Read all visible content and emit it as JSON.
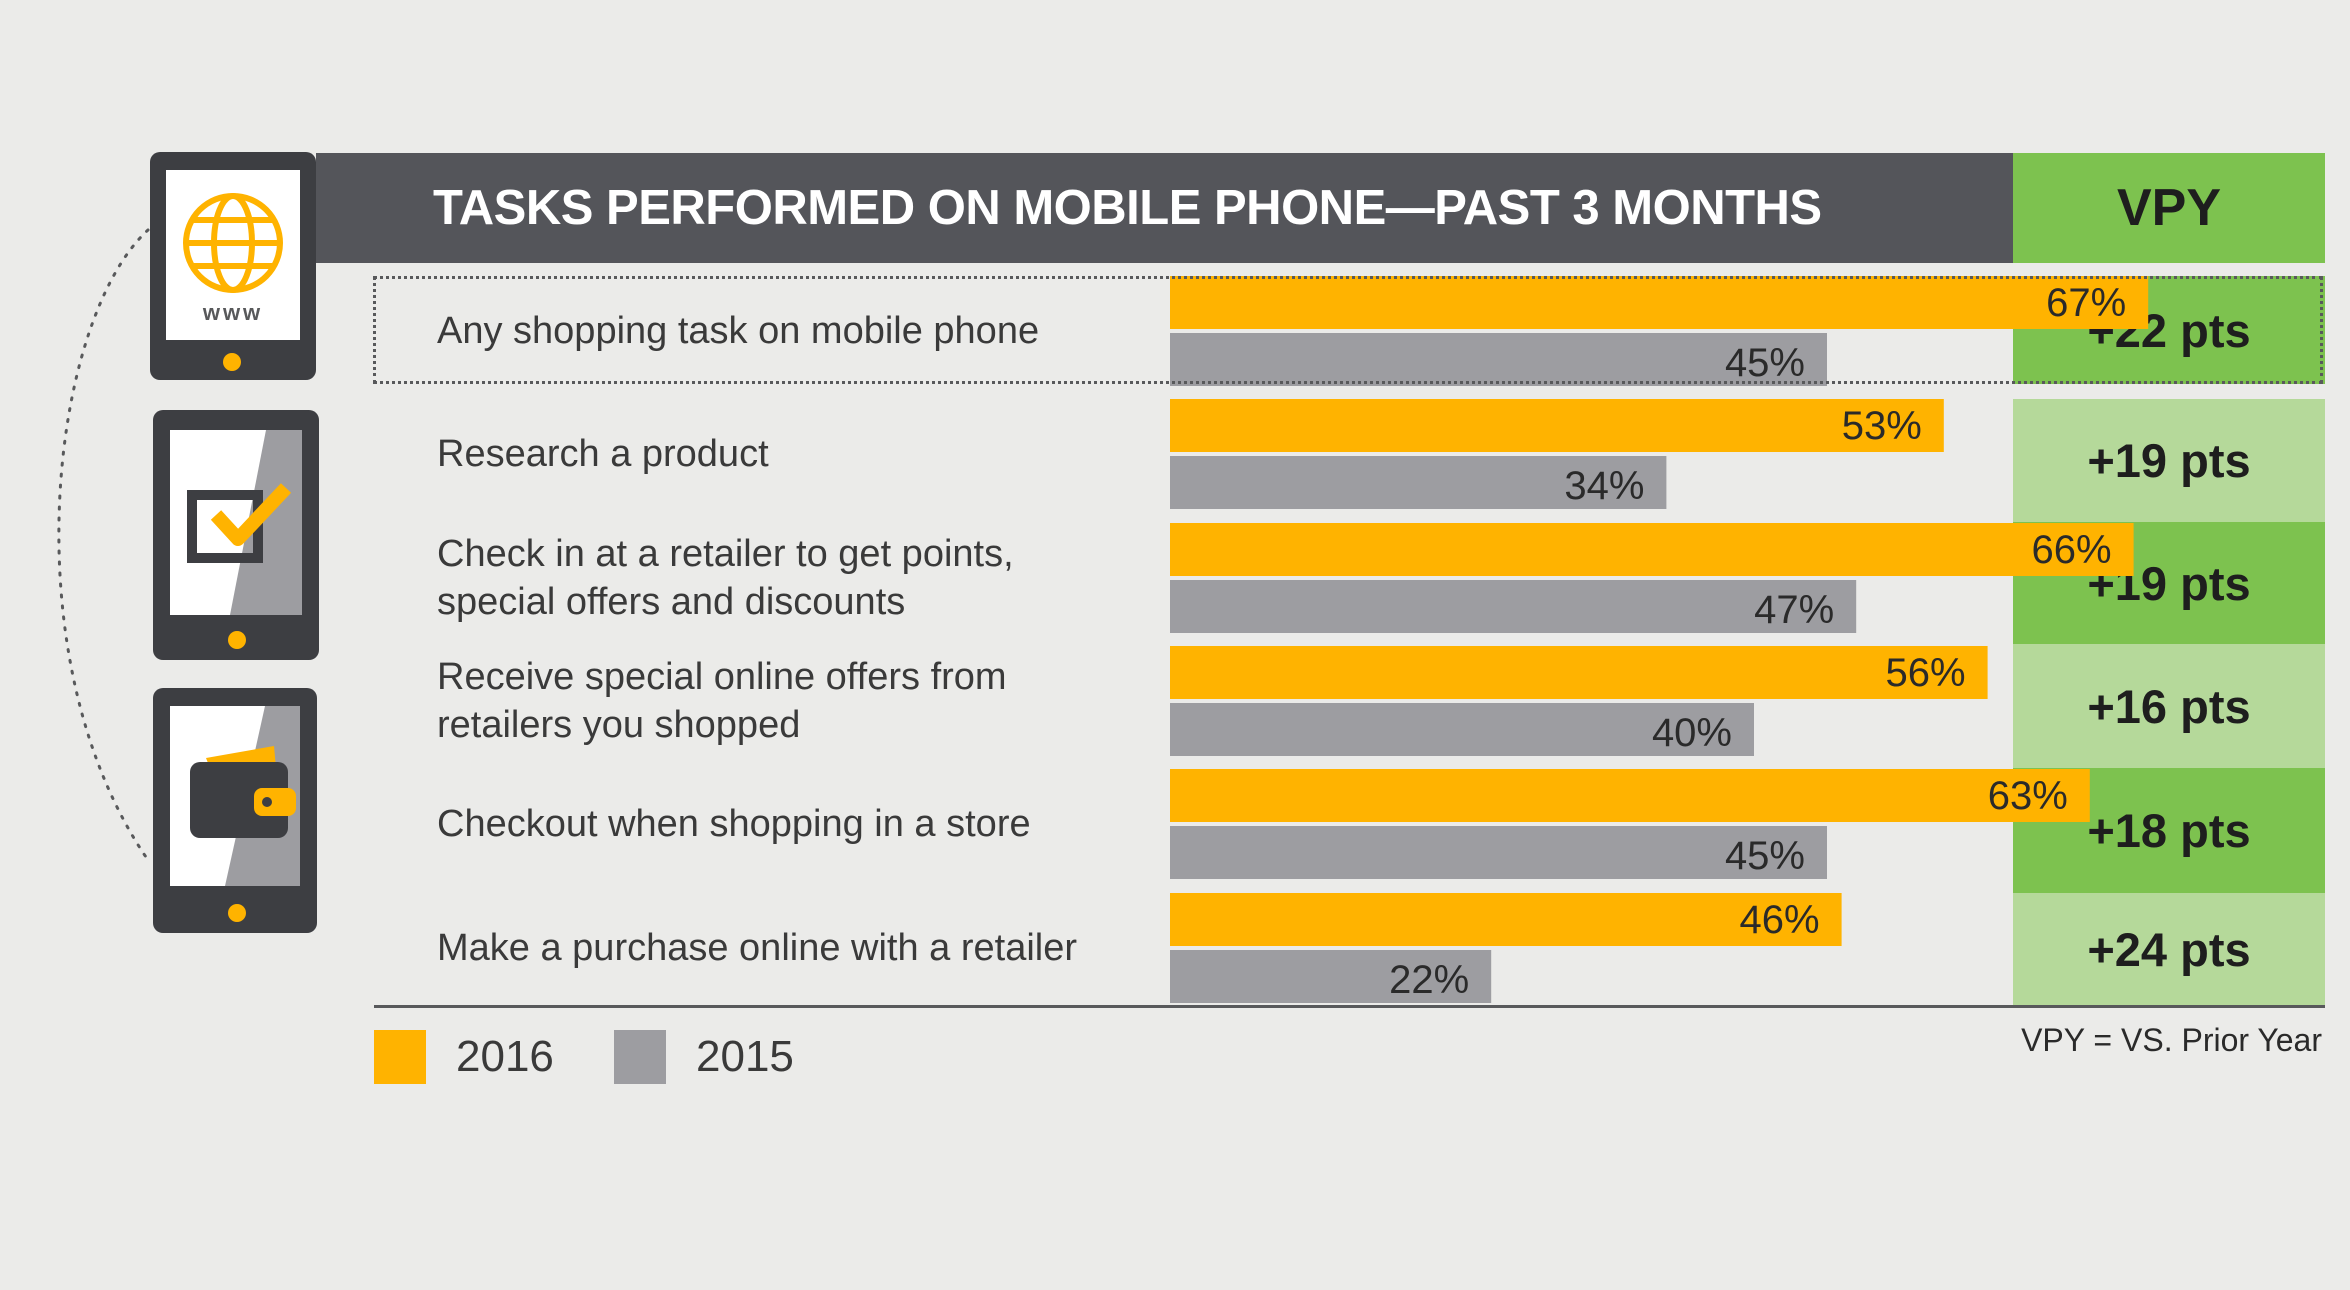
{
  "header": {
    "title": "TASKS PERFORMED ON MOBILE PHONE—PAST 3 MONTHS",
    "vpy_label": "VPY"
  },
  "colors": {
    "bar_2016": "#ffb300",
    "bar_2015": "#9d9da1",
    "header_bg": "#54555a",
    "vpy_dark": "#7dc24f",
    "vpy_light": "#b5d99a"
  },
  "icons": [
    "globe-www-icon",
    "checkbox-check-icon",
    "wallet-icon"
  ],
  "www_text": "www",
  "chart_data": {
    "type": "bar",
    "orientation": "horizontal",
    "title": "TASKS PERFORMED ON MOBILE PHONE—PAST 3 MONTHS",
    "categories": [
      "Any shopping task on mobile phone",
      "Research a product",
      "Check in at a retailer to get points, special offers and discounts",
      "Receive special online offers from retailers you shopped",
      "Checkout when shopping in a store",
      "Make a purchase online with a retailer"
    ],
    "category_lines": [
      [
        "Any shopping task on mobile phone"
      ],
      [
        "Research a product"
      ],
      [
        "Check in at a retailer to get points,",
        "special offers and discounts"
      ],
      [
        "Receive special online offers from",
        "retailers you shopped"
      ],
      [
        "Checkout when shopping in a store"
      ],
      [
        "Make a purchase online with a retailer"
      ]
    ],
    "series": [
      {
        "name": "2016",
        "values": [
          67,
          53,
          66,
          56,
          63,
          46
        ],
        "labels": [
          "67%",
          "53%",
          "66%",
          "56%",
          "63%",
          "46%"
        ]
      },
      {
        "name": "2015",
        "values": [
          45,
          34,
          47,
          40,
          45,
          22
        ],
        "labels": [
          "45%",
          "34%",
          "47%",
          "40%",
          "45%",
          "22%"
        ]
      }
    ],
    "vpy": [
      "+22 pts",
      "+19 pts",
      "+19 pts",
      "+16 pts",
      "+18 pts",
      "+24 pts"
    ],
    "vpy_shade": [
      "dark",
      "light",
      "dark",
      "light",
      "dark",
      "light"
    ],
    "highlighted_row": 0,
    "xlim": [
      0,
      100
    ],
    "legend": {
      "position": "bottom-left",
      "items": [
        "2016",
        "2015"
      ]
    },
    "note": "VPY = VS. Prior Year"
  }
}
